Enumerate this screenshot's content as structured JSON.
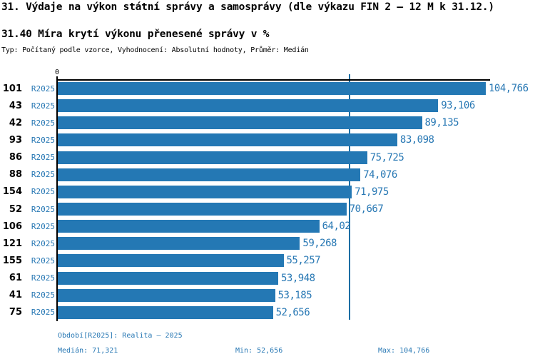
{
  "header": {
    "title": "31. Výdaje na výkon státní správy a samosprávy (dle výkazu FIN 2 – 12 M k 31.12.)",
    "subtitle": "31.40 Míra krytí výkonu přenesené správy v %",
    "meta": "Typ: Počítaný podle vzorce, Vyhodnocení: Absolutní hodnoty, Průměr: Medián"
  },
  "chart_data": {
    "type": "bar",
    "orientation": "horizontal",
    "title": "31.40 Míra krytí výkonu přenesené správy v %",
    "axis_zero_label": "0",
    "series_label": "R2025",
    "categories": [
      "101",
      "43",
      "42",
      "93",
      "86",
      "88",
      "154",
      "52",
      "106",
      "121",
      "155",
      "61",
      "41",
      "75"
    ],
    "values": [
      104.766,
      93.106,
      89.135,
      83.098,
      75.725,
      74.076,
      71.975,
      70.667,
      64.02,
      59.268,
      55.257,
      53.948,
      53.185,
      52.656
    ],
    "value_labels": [
      "104,766",
      "93,106",
      "89,135",
      "83,098",
      "75,725",
      "74,076",
      "71,975",
      "70,667",
      "64,02",
      "59,268",
      "55,257",
      "53,948",
      "53,185",
      "52,656"
    ],
    "median": 71.321,
    "min": 52.656,
    "max": 104.766,
    "xlim": [
      0,
      104.766
    ],
    "grid": false,
    "legend": "none",
    "bar_color": "#2478B4",
    "text_blue_color": "#2878B4",
    "median_line_color": "#1C6EA4"
  },
  "footer": {
    "period": "Období[R2025]: Realita – 2025",
    "median": "Medián: 71,321",
    "min": "Min: 52,656",
    "max": "Max: 104,766"
  }
}
